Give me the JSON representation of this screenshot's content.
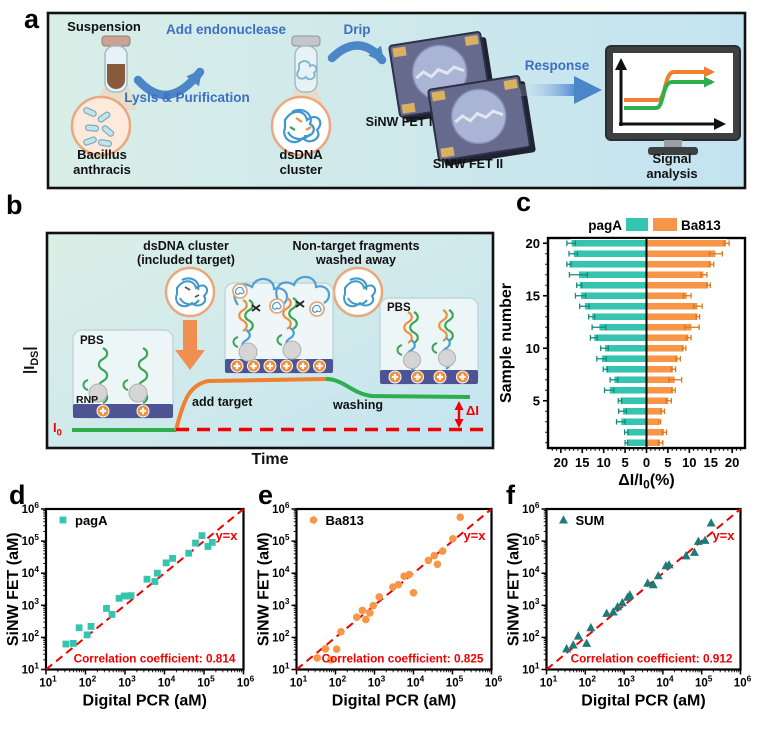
{
  "panels": {
    "a": {
      "label": "a",
      "suspension": "Suspension",
      "add_endonuclease": "Add endonuclease",
      "lysis_purification": "Lysis & Purification",
      "drip": "Drip",
      "bacillus_line1": "Bacillus",
      "bacillus_line2": "anthracis",
      "dsdna_line1": "dsDNA",
      "dsdna_line2": "cluster",
      "fet1": "SiNW FET I",
      "fet2": "SiNW FET II",
      "response": "Response",
      "signal_line1": "Signal",
      "signal_line2": "analysis"
    },
    "b": {
      "label": "b",
      "ids_pre": "|I",
      "ids_sub": "DS",
      "ids_post": "|",
      "cluster_line1": "dsDNA cluster",
      "cluster_line2": "(included target)",
      "nontarget_line1": "Non-target fragments",
      "nontarget_line2": "washed away",
      "pbs_left": "PBS",
      "pbs_right": "PBS",
      "rnp": "RNP",
      "add_target": "add target",
      "washing": "washing",
      "delta_i": "ΔI",
      "i0_main": "I",
      "i0_sub": "0",
      "time": "Time"
    },
    "c": {
      "label": "c"
    },
    "d": {
      "label": "d"
    },
    "e": {
      "label": "e"
    },
    "f": {
      "label": "f"
    }
  },
  "colors": {
    "teal": "#35C4AF",
    "orange": "#F79646",
    "dark_teal": "#1E7B78",
    "red": "#F20000",
    "blue_text": "#3E6EC4",
    "green_curve": "#2DAF4E",
    "orange_curve": "#F08030",
    "navy_bar": "#4D5393"
  },
  "chart_data": [
    {
      "panel": "c",
      "type": "bar",
      "orientation": "diverging-horizontal",
      "ylabel": "Sample number",
      "xlabel": "ΔI/I0(%)",
      "xlabel_parts": {
        "pre": "ΔI/I",
        "sub": "0",
        "post": "(%)"
      },
      "xlim": [
        -23,
        23
      ],
      "x_ticks": [
        20,
        15,
        10,
        5,
        0,
        5,
        10,
        15,
        20
      ],
      "y_ticks": [
        5,
        10,
        15,
        20
      ],
      "categories": [
        1,
        2,
        3,
        4,
        5,
        6,
        7,
        8,
        9,
        10,
        11,
        12,
        13,
        14,
        15,
        16,
        17,
        18,
        19,
        20
      ],
      "series": [
        {
          "name": "pagA",
          "side": "left",
          "color": "#35C4AF",
          "err_color": "#118D7E",
          "values": [
            4.7,
            4.7,
            6.0,
            5.6,
            6.2,
            8.7,
            7.6,
            9.6,
            10.5,
            9.8,
            12.3,
            11.1,
            12.8,
            14.5,
            15.4,
            15.7,
            15.9,
            18.1,
            17.1,
            17.6
          ],
          "errors": [
            0.3,
            0.4,
            1.0,
            0.9,
            0.4,
            1.1,
            0.9,
            0.5,
            1.1,
            0.9,
            0.8,
            1.6,
            0.7,
            1.1,
            1.2,
            0.6,
            2.1,
            0.5,
            1.0,
            1.0
          ]
        },
        {
          "name": "Ba813",
          "side": "right",
          "color": "#F79646",
          "err_color": "#D97A1E",
          "values": [
            3.3,
            4.2,
            3.1,
            3.8,
            5.2,
            6.3,
            6.7,
            6.3,
            7.4,
            8.8,
            9.9,
            10.6,
            12.0,
            12.0,
            9.5,
            14.5,
            13.4,
            15.2,
            16.2,
            18.7
          ],
          "errors": [
            0.5,
            0.5,
            0.2,
            0.4,
            0.6,
            0.4,
            1.5,
            0.5,
            0.5,
            0.4,
            0.5,
            1.7,
            0.4,
            1.0,
            0.9,
            0.4,
            0.7,
            0.5,
            1.5,
            0.6
          ]
        }
      ]
    },
    {
      "panel": "d",
      "type": "scatter",
      "legend": "pagA",
      "marker": "square",
      "color": "#35C4AF",
      "line_label": "y=x",
      "line_color": "#F20000",
      "annotation": "Correlation coefficient: 0.814",
      "xlabel": "Digital PCR (aM)",
      "ylabel": "SiNW FET (aM)",
      "xlim": [
        10,
        1000000
      ],
      "ylim": [
        10,
        1000000
      ],
      "points": [
        [
          32,
          62
        ],
        [
          49,
          65
        ],
        [
          69,
          200
        ],
        [
          110,
          120
        ],
        [
          138,
          220
        ],
        [
          340,
          800
        ],
        [
          470,
          520
        ],
        [
          710,
          1650
        ],
        [
          960,
          1950
        ],
        [
          1170,
          1950
        ],
        [
          1420,
          2000
        ],
        [
          3600,
          6500
        ],
        [
          5700,
          5500
        ],
        [
          6600,
          10000
        ],
        [
          11000,
          21000
        ],
        [
          16000,
          29000
        ],
        [
          41000,
          42000
        ],
        [
          61000,
          87000
        ],
        [
          89000,
          148000
        ],
        [
          126000,
          68000
        ],
        [
          162000,
          91000
        ]
      ]
    },
    {
      "panel": "e",
      "type": "scatter",
      "legend": "Ba813",
      "marker": "circle",
      "color": "#F79646",
      "line_label": "y=x",
      "line_color": "#F20000",
      "annotation": "Correlation coefficient: 0.825",
      "xlabel": "Digital PCR (aM)",
      "ylabel": "SiNW FET (aM)",
      "xlim": [
        10,
        1000000
      ],
      "ylim": [
        10,
        1000000
      ],
      "points": [
        [
          34,
          23
        ],
        [
          55,
          44
        ],
        [
          76,
          20
        ],
        [
          107,
          43
        ],
        [
          138,
          150
        ],
        [
          350,
          425
        ],
        [
          490,
          690
        ],
        [
          600,
          360
        ],
        [
          760,
          580
        ],
        [
          930,
          970
        ],
        [
          1320,
          1830
        ],
        [
          2950,
          3700
        ],
        [
          4100,
          4400
        ],
        [
          5750,
          8100
        ],
        [
          7750,
          9100
        ],
        [
          10000,
          2450
        ],
        [
          24000,
          25000
        ],
        [
          34000,
          35000
        ],
        [
          41000,
          19000
        ],
        [
          56000,
          49000
        ],
        [
          102000,
          118000
        ],
        [
          158000,
          556000
        ]
      ]
    },
    {
      "panel": "f",
      "type": "scatter",
      "legend": "SUM",
      "marker": "triangle",
      "color": "#1E7B78",
      "line_label": "y=x",
      "line_color": "#F20000",
      "annotation": "Correlation coefficient: 0.912",
      "xlabel": "Digital PCR (aM)",
      "ylabel": "SiNW FET (aM)",
      "xlim": [
        10,
        1000000
      ],
      "ylim": [
        10,
        1000000
      ],
      "points": [
        [
          33,
          44
        ],
        [
          49,
          58
        ],
        [
          66,
          110
        ],
        [
          108,
          65
        ],
        [
          139,
          200
        ],
        [
          355,
          560
        ],
        [
          525,
          620
        ],
        [
          680,
          900
        ],
        [
          900,
          1200
        ],
        [
          1230,
          1780
        ],
        [
          1410,
          2100
        ],
        [
          4050,
          4900
        ],
        [
          5640,
          4350
        ],
        [
          7600,
          8300
        ],
        [
          12000,
          17000
        ],
        [
          14400,
          18200
        ],
        [
          39600,
          34800
        ],
        [
          65000,
          44400
        ],
        [
          82000,
          98000
        ],
        [
          122000,
          105000
        ],
        [
          175000,
          365000
        ]
      ]
    }
  ]
}
